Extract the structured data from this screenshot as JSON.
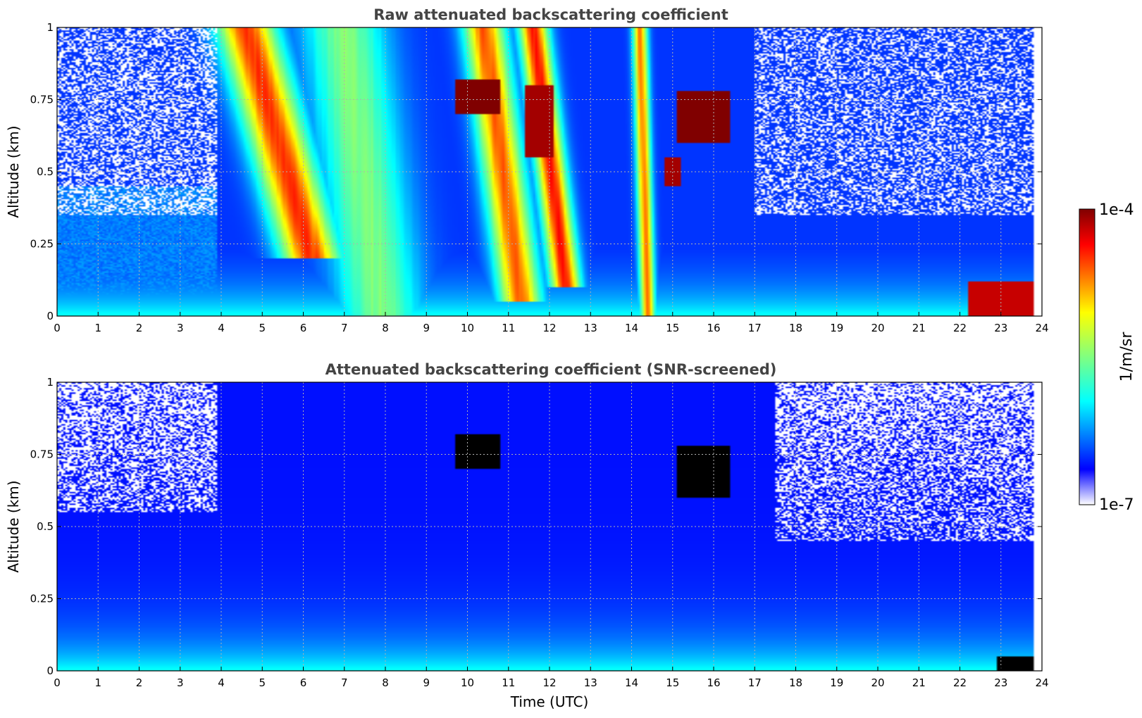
{
  "chart_data": [
    {
      "type": "heatmap",
      "title": "Raw attenuated backscattering coefficient",
      "xlabel": "",
      "ylabel": "Altitude (km)",
      "xlim": [
        0,
        24
      ],
      "ylim": [
        0,
        1
      ],
      "x_ticks": [
        0,
        1,
        2,
        3,
        4,
        5,
        6,
        7,
        8,
        9,
        10,
        11,
        12,
        13,
        14,
        15,
        16,
        17,
        18,
        19,
        20,
        21,
        22,
        23,
        24
      ],
      "y_ticks": [
        0,
        0.25,
        0.5,
        0.75,
        1
      ],
      "y_tick_labels": [
        "0",
        "0.25",
        "0.5",
        "0.75",
        "1"
      ],
      "grid": true,
      "screened": false,
      "features": [
        {
          "kind": "noise_aloft",
          "x": [
            0,
            3.9
          ],
          "from": 0.35,
          "level": -6.7
        },
        {
          "kind": "aerosol_layer",
          "x": [
            0,
            3.9
          ],
          "top": 0.45,
          "level": -6.4
        },
        {
          "kind": "plume",
          "x0": 4.6,
          "x1": 6.2,
          "bottom": 0.2,
          "width": 1.0,
          "level": -4.5
        },
        {
          "kind": "plume",
          "x0": 7.0,
          "x1": 7.9,
          "bottom": 0.0,
          "width": 1.4,
          "level": -5.5
        },
        {
          "kind": "plume",
          "x0": 10.4,
          "x1": 11.3,
          "bottom": 0.05,
          "width": 0.7,
          "level": -4.6
        },
        {
          "kind": "plume",
          "x0": 11.6,
          "x1": 12.4,
          "bottom": 0.1,
          "width": 0.5,
          "level": -4.4
        },
        {
          "kind": "plume",
          "x0": 14.2,
          "x1": 14.4,
          "bottom": 0.0,
          "width": 0.25,
          "level": -4.7
        },
        {
          "kind": "cloud",
          "x": [
            9.7,
            10.8
          ],
          "y": [
            0.7,
            0.82
          ],
          "level": -4.0
        },
        {
          "kind": "cloud",
          "x": [
            11.4,
            12.1
          ],
          "y": [
            0.55,
            0.8
          ],
          "level": -4.1
        },
        {
          "kind": "cloud",
          "x": [
            15.1,
            16.4
          ],
          "y": [
            0.6,
            0.78
          ],
          "level": -4.0
        },
        {
          "kind": "cloud",
          "x": [
            14.8,
            15.2
          ],
          "y": [
            0.45,
            0.55
          ],
          "level": -4.1
        },
        {
          "kind": "surface_layer",
          "x": [
            22.2,
            23.8
          ],
          "y": [
            0.0,
            0.12
          ],
          "level": -4.2
        },
        {
          "kind": "no_data",
          "x": [
            23.8,
            24
          ],
          "y": [
            0,
            1
          ]
        }
      ]
    },
    {
      "type": "heatmap",
      "title": "Attenuated backscattering coefficient (SNR-screened)",
      "xlabel": "Time (UTC)",
      "ylabel": "Altitude (km)",
      "xlim": [
        0,
        24
      ],
      "ylim": [
        0,
        1
      ],
      "x_ticks": [
        0,
        1,
        2,
        3,
        4,
        5,
        6,
        7,
        8,
        9,
        10,
        11,
        12,
        13,
        14,
        15,
        16,
        17,
        18,
        19,
        20,
        21,
        22,
        23,
        24
      ],
      "y_ticks": [
        0,
        0.25,
        0.5,
        0.75,
        1
      ],
      "y_tick_labels": [
        "0",
        "0.25",
        "0.5",
        "0.75",
        "1"
      ],
      "grid": true,
      "screened": true,
      "saturated_color": "#000000",
      "features": [
        {
          "kind": "masked_aloft",
          "x": [
            0,
            3.9
          ],
          "from": 0.55
        },
        {
          "kind": "masked_aloft",
          "x": [
            17.5,
            23.8
          ],
          "from": 0.45
        },
        {
          "kind": "cloud",
          "x": [
            9.7,
            10.8
          ],
          "y": [
            0.7,
            0.82
          ],
          "level": -3.5
        },
        {
          "kind": "cloud",
          "x": [
            15.1,
            16.4
          ],
          "y": [
            0.6,
            0.78
          ],
          "level": -3.5
        },
        {
          "kind": "surface_layer",
          "x": [
            22.9,
            23.8
          ],
          "y": [
            0.0,
            0.05
          ],
          "level": -3.5
        },
        {
          "kind": "no_data",
          "x": [
            23.8,
            24
          ],
          "y": [
            0,
            1
          ]
        }
      ]
    }
  ],
  "colorbar": {
    "colormap": "jet",
    "scale": "log",
    "min_label": "1e-7",
    "max_label": "1e-4",
    "unit_label": "1/m/sr",
    "range": [
      1e-07,
      0.0001
    ]
  }
}
